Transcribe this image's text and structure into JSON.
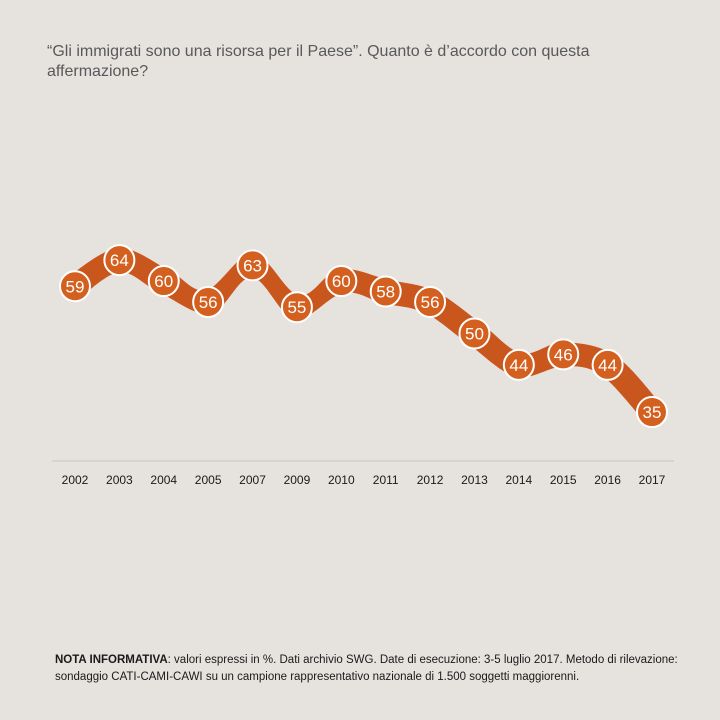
{
  "title": "“Gli immigrati sono una risorsa per il Paese”. Quanto è d’accordo con questa affermazione?",
  "note": {
    "label": "NOTA INFORMATIVA",
    "text": ": valori espressi in %. Dati archivio SWG. Date di esecuzione: 3-5 luglio 2017. Metodo di rilevazione: sondaggio CATI-CAMI-CAWI su un campione rappresentativo nazionale di 1.500 soggetti maggiorenni."
  },
  "colors": {
    "background": "#e6e2de",
    "band": "#c9561c",
    "marker_fill": "#d4601f",
    "marker_stroke": "#ffffff",
    "axis": "#c8c4c0",
    "text": "#58595b"
  },
  "chart_data": {
    "type": "line",
    "title": "“Gli immigrati sono una risorsa per il Paese”. Quanto è d’accordo con questa affermazione?",
    "xlabel": "",
    "ylabel": "",
    "categories": [
      "2002",
      "2003",
      "2004",
      "2005",
      "2007",
      "2009",
      "2010",
      "2011",
      "2012",
      "2013",
      "2014",
      "2015",
      "2016",
      "2017"
    ],
    "series": [
      {
        "values": [
          59,
          64,
          60,
          56,
          63,
          55,
          60,
          58,
          56,
          50,
          44,
          46,
          44,
          35
        ]
      }
    ],
    "data_labels": true,
    "grid": false,
    "legend": "none"
  }
}
